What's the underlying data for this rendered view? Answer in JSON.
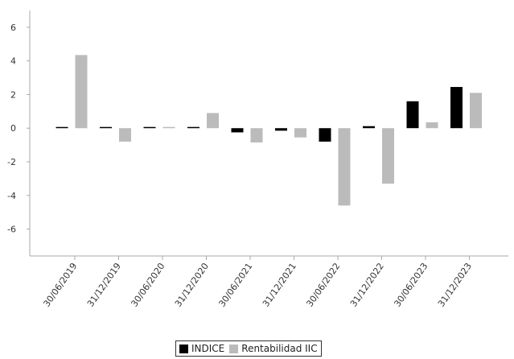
{
  "chart_data": {
    "type": "bar",
    "categories": [
      "30/06/2019",
      "31/12/2019",
      "30/06/2020",
      "31/12/2020",
      "30/06/2021",
      "31/12/2021",
      "30/06/2022",
      "31/12/2022",
      "30/06/2023",
      "31/12/2023"
    ],
    "series": [
      {
        "name": "INDICE",
        "color": "#000000",
        "values": [
          0.03,
          0.06,
          0.06,
          0.03,
          -0.25,
          -0.15,
          -0.8,
          0.12,
          1.6,
          2.45
        ]
      },
      {
        "name": "Rentabilidad IIC",
        "color": "#bbbbbb",
        "values": [
          4.35,
          -0.8,
          0.04,
          0.9,
          -0.85,
          -0.55,
          -4.6,
          -3.3,
          0.35,
          2.1
        ]
      }
    ],
    "yticks": [
      6,
      4,
      2,
      0,
      -2,
      -4,
      -6
    ],
    "ylim": [
      -7.6,
      7.0
    ],
    "grid": false,
    "legend_position": "bottom"
  }
}
